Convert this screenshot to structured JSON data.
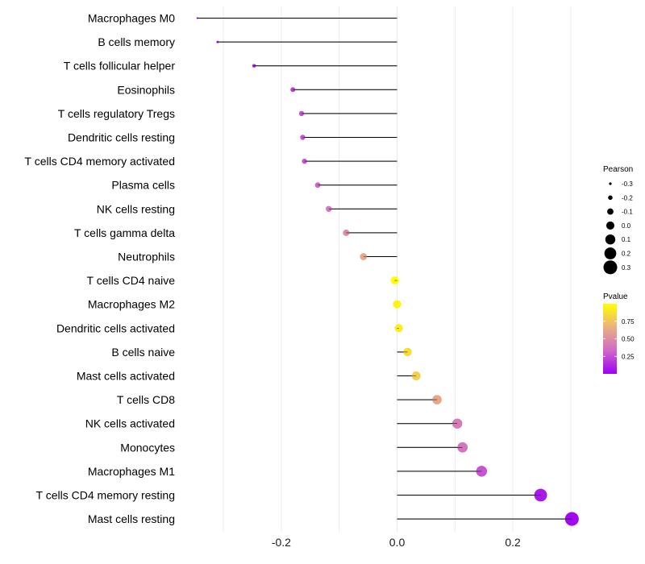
{
  "chart_data": {
    "type": "lollipop",
    "title": "",
    "xlabel": "",
    "ylabel": "",
    "xlim": [
      -0.345,
      0.325
    ],
    "x_ticks": [
      -0.2,
      0.0,
      0.2
    ],
    "x_tick_labels": [
      "-0.2",
      "0.0",
      "0.2"
    ],
    "categories": [
      "Macrophages M0",
      "B cells memory",
      "T cells follicular helper",
      "Eosinophils",
      "T cells regulatory  Tregs ",
      "Dendritic cells resting",
      "T cells CD4 memory activated",
      "Plasma cells",
      "NK cells resting",
      "T cells gamma delta",
      "Neutrophils",
      "T cells CD4 naive",
      "Macrophages M2",
      "Dendritic cells activated",
      "B cells naive",
      "Mast cells activated",
      "T cells CD8",
      "NK cells activated",
      "Monocytes",
      "Macrophages M1",
      "T cells CD4 memory resting",
      "Mast cells resting"
    ],
    "pearson": [
      -0.345,
      -0.31,
      -0.247,
      -0.18,
      -0.165,
      -0.163,
      -0.16,
      -0.137,
      -0.118,
      -0.088,
      -0.058,
      -0.004,
      0.0,
      0.003,
      0.018,
      0.033,
      0.069,
      0.104,
      0.113,
      0.146,
      0.248,
      0.302
    ],
    "pvalue": [
      0.01,
      0.04,
      0.08,
      0.2,
      0.25,
      0.26,
      0.27,
      0.33,
      0.4,
      0.5,
      0.62,
      0.99,
      0.96,
      0.92,
      0.86,
      0.8,
      0.62,
      0.42,
      0.38,
      0.27,
      0.08,
      0.03
    ],
    "legend_size": {
      "title": "Pearson",
      "values": [
        -0.3,
        -0.2,
        -0.1,
        0.0,
        0.1,
        0.2,
        0.3
      ],
      "labels": [
        "-0.3",
        "-0.2",
        "-0.1",
        "0.0",
        "0.1",
        "0.2",
        "0.3"
      ]
    },
    "legend_color": {
      "title": "Pvalue",
      "ticks": [
        0.25,
        0.5,
        0.75
      ],
      "labels": [
        "0.25",
        "0.50",
        "0.75"
      ],
      "range": [
        0.0,
        1.0
      ],
      "colors": [
        "#9d00f5",
        "#d069c8",
        "#eab080",
        "#ffff00"
      ]
    },
    "stem_color": "#000000",
    "grid": "vertical"
  }
}
